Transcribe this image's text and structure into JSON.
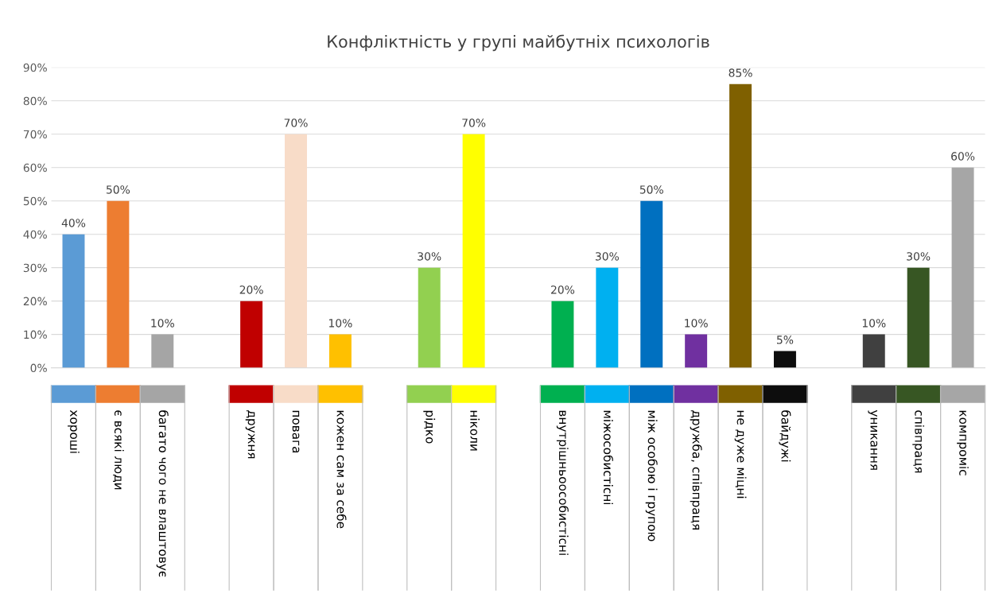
{
  "chart_data": {
    "type": "bar",
    "title": "Конфліктність у групі майбутніх психологів",
    "categories": [
      "хороші",
      "є всякі люди",
      "багато чого не влаштовує",
      null,
      "дружня",
      "повага",
      "кожен сам за себе",
      null,
      "рідко",
      "ніколи",
      null,
      "внутрішньоособистісні",
      "міжособистісні",
      "між особою і групою",
      "дружба, співпраця",
      "не дуже міцні",
      "байдужі",
      null,
      "уникання",
      "співпраця",
      "компроміс"
    ],
    "values": [
      40,
      50,
      10,
      null,
      20,
      70,
      10,
      null,
      30,
      70,
      null,
      20,
      30,
      50,
      10,
      85,
      5,
      null,
      10,
      30,
      60
    ],
    "colors": [
      "#5b9bd5",
      "#ed7d31",
      "#a5a5a5",
      "#ffffff",
      "#c00000",
      "#f8dcc8",
      "#ffc000",
      "#ffffff",
      "#92d050",
      "#ffff00",
      "#ffffff",
      "#00b050",
      "#00b0f0",
      "#0070c0",
      "#7030a0",
      "#7f6000",
      "#0d0d0d",
      "#ffffff",
      "#404040",
      "#375623",
      "#a6a6a6"
    ],
    "ylim": [
      0,
      90
    ],
    "yticks": [
      {
        "value": 0,
        "label": "0%"
      },
      {
        "value": 10,
        "label": "10%"
      },
      {
        "value": 20,
        "label": "20%"
      },
      {
        "value": 30,
        "label": "30%"
      },
      {
        "value": 40,
        "label": "40%"
      },
      {
        "value": 50,
        "label": "50%"
      },
      {
        "value": 60,
        "label": "60%"
      },
      {
        "value": 70,
        "label": "70%"
      },
      {
        "value": 80,
        "label": "80%"
      },
      {
        "value": 90,
        "label": "90%"
      }
    ],
    "value_labels": [
      "40%",
      "50%",
      "10%",
      null,
      "20%",
      "70%",
      "10%",
      null,
      "30%",
      "70%",
      null,
      "20%",
      "30%",
      "50%",
      "10%",
      "85%",
      "5%",
      null,
      "10%",
      "30%",
      "60%"
    ],
    "grid": "y",
    "legend": false
  }
}
